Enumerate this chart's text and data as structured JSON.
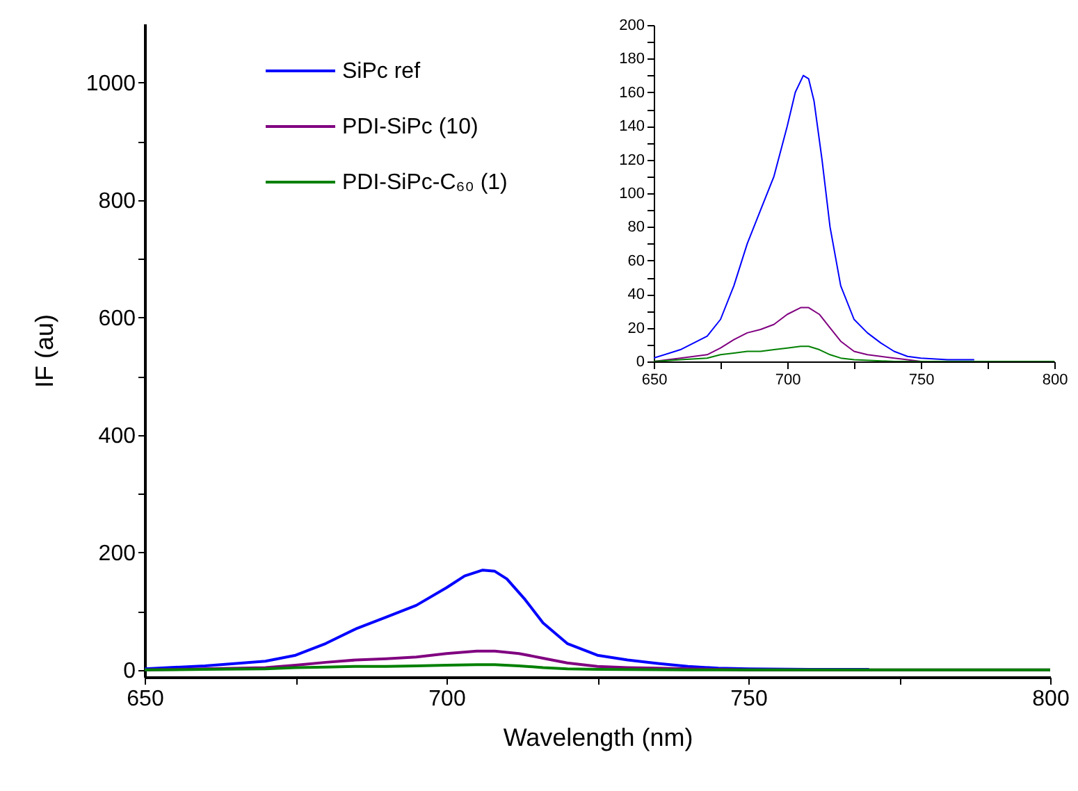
{
  "chart_data": [
    {
      "type": "line",
      "xlabel": "Wavelength (nm)",
      "ylabel": "IF (au)",
      "legend": "top left",
      "xlim": [
        650,
        800
      ],
      "ylim": [
        -12,
        1100
      ],
      "xticks": [
        650,
        {
          "value": 675,
          "label": null
        },
        700,
        {
          "value": 725,
          "label": null
        },
        750,
        {
          "value": 775,
          "label": null
        },
        800
      ],
      "yticks": [
        0,
        {
          "value": 100,
          "label": null
        },
        200,
        {
          "value": 300,
          "label": null
        },
        400,
        {
          "value": 500,
          "label": null
        },
        600,
        {
          "value": 700,
          "label": null
        },
        800,
        {
          "value": 900,
          "label": null
        },
        1000
      ],
      "series": [
        {
          "name": "SiPc ref",
          "color": "#0000ff",
          "x": [
            650,
            660,
            670,
            675,
            680,
            685,
            690,
            695,
            700,
            703,
            706,
            708,
            710,
            713,
            716,
            720,
            725,
            730,
            735,
            740,
            745,
            750,
            760,
            770
          ],
          "values": [
            2,
            7,
            15,
            25,
            45,
            70,
            90,
            110,
            140,
            160,
            170,
            168,
            155,
            120,
            80,
            45,
            25,
            17,
            11,
            6,
            3,
            2,
            1,
            1
          ]
        },
        {
          "name": "PDI-SiPc (10)",
          "color": "#800080",
          "x": [
            650,
            660,
            670,
            675,
            680,
            685,
            690,
            695,
            700,
            705,
            708,
            712,
            716,
            720,
            725,
            730,
            735,
            740,
            745,
            750,
            800
          ],
          "values": [
            0,
            2,
            4,
            8,
            13,
            17,
            19,
            22,
            28,
            32,
            32,
            28,
            20,
            12,
            6,
            4,
            3,
            2,
            1,
            0,
            0
          ]
        },
        {
          "name": "PDI-SiPc-C₆₀ (1)",
          "color": "#008000",
          "x": [
            650,
            660,
            670,
            675,
            680,
            685,
            690,
            695,
            700,
            705,
            708,
            712,
            716,
            720,
            725,
            740,
            800
          ],
          "values": [
            0,
            1,
            2,
            4,
            5,
            6,
            6,
            7,
            8,
            9,
            9,
            7,
            4,
            2,
            1,
            0,
            0
          ]
        }
      ]
    },
    {
      "type": "line",
      "xlim": [
        650,
        800
      ],
      "ylim": [
        0,
        200
      ],
      "xticks": [
        650,
        {
          "value": 675,
          "label": null
        },
        700,
        {
          "value": 725,
          "label": null
        },
        750,
        {
          "value": 775,
          "label": null
        },
        800
      ],
      "yticks": [
        0,
        {
          "value": 10,
          "label": null
        },
        20,
        {
          "value": 30,
          "label": null
        },
        40,
        {
          "value": 50,
          "label": null
        },
        60,
        {
          "value": 70,
          "label": null
        },
        80,
        {
          "value": 90,
          "label": null
        },
        100,
        {
          "value": 110,
          "label": null
        },
        120,
        {
          "value": 130,
          "label": null
        },
        140,
        {
          "value": 150,
          "label": null
        },
        160,
        {
          "value": 170,
          "label": null
        },
        180,
        {
          "value": 190,
          "label": null
        },
        200
      ],
      "series": [
        {
          "color": "#0000ff",
          "x": [
            650,
            660,
            670,
            675,
            680,
            685,
            690,
            695,
            700,
            703,
            706,
            708,
            710,
            713,
            716,
            720,
            725,
            730,
            735,
            740,
            745,
            750,
            760,
            770
          ],
          "values": [
            2,
            7,
            15,
            25,
            45,
            70,
            90,
            110,
            140,
            160,
            170,
            168,
            155,
            120,
            80,
            45,
            25,
            17,
            11,
            6,
            3,
            2,
            1,
            1
          ]
        },
        {
          "color": "#800080",
          "x": [
            650,
            660,
            670,
            675,
            680,
            685,
            690,
            695,
            700,
            705,
            708,
            712,
            716,
            720,
            725,
            730,
            735,
            740,
            745,
            750,
            800
          ],
          "values": [
            0,
            2,
            4,
            8,
            13,
            17,
            19,
            22,
            28,
            32,
            32,
            28,
            20,
            12,
            6,
            4,
            3,
            2,
            1,
            0,
            0
          ]
        },
        {
          "color": "#008000",
          "x": [
            650,
            660,
            670,
            675,
            680,
            685,
            690,
            695,
            700,
            705,
            708,
            712,
            716,
            720,
            725,
            740,
            800
          ],
          "values": [
            0,
            1,
            2,
            4,
            5,
            6,
            6,
            7,
            8,
            9,
            9,
            7,
            4,
            2,
            1,
            0,
            0
          ]
        }
      ]
    }
  ]
}
